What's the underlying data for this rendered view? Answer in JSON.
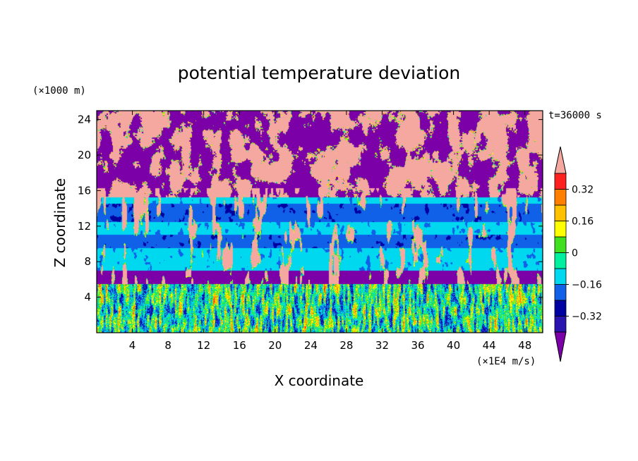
{
  "chart_data": {
    "type": "heatmap",
    "title": "potential temperature deviation",
    "xlabel": "X coordinate",
    "ylabel": "Z coordinate",
    "x_unit_label": "(×1E4 m/s)",
    "y_unit_label": "(×1000 m)",
    "time_label": "t=36000 s",
    "xlim": [
      0,
      50
    ],
    "ylim": [
      0,
      25
    ],
    "x_ticks": [
      4,
      8,
      12,
      16,
      20,
      24,
      28,
      32,
      36,
      40,
      44,
      48
    ],
    "y_ticks": [
      4,
      8,
      12,
      16,
      20,
      24
    ],
    "layers": [
      {
        "z_range": [
          0,
          5.5
        ],
        "description": "turbulent boundary layer, all colors mixed"
      },
      {
        "z_range": [
          5.5,
          7
        ],
        "dominant_level": 0
      },
      {
        "z_range": [
          7,
          9.5
        ],
        "dominant_level": 4
      },
      {
        "z_range": [
          9.5,
          11
        ],
        "dominant_level": 3
      },
      {
        "z_range": [
          11,
          12.5
        ],
        "dominant_level": 4
      },
      {
        "z_range": [
          12.5,
          14.5
        ],
        "dominant_level": 3
      },
      {
        "z_range": [
          14.5,
          15.2
        ],
        "dominant_level": 4
      },
      {
        "z_range": [
          15.2,
          25
        ],
        "description": "alternating purple and pink patches"
      }
    ],
    "colorbar": {
      "labels": [
        "0.32",
        "0.16",
        "0",
        "−0.16",
        "−0.32"
      ],
      "label_values": [
        0.32,
        0.16,
        0,
        -0.16,
        -0.32
      ],
      "levels": [
        -0.4,
        -0.32,
        -0.24,
        -0.16,
        -0.08,
        0,
        0.08,
        0.16,
        0.24,
        0.32,
        0.4
      ],
      "colors": [
        "#7b00a8",
        "#2a14b0",
        "#0000a0",
        "#1060e8",
        "#00d8f0",
        "#00f0a0",
        "#40e020",
        "#ffff00",
        "#ffc000",
        "#ff8000",
        "#ff2020",
        "#f5a8a0"
      ],
      "extend": "both"
    }
  }
}
